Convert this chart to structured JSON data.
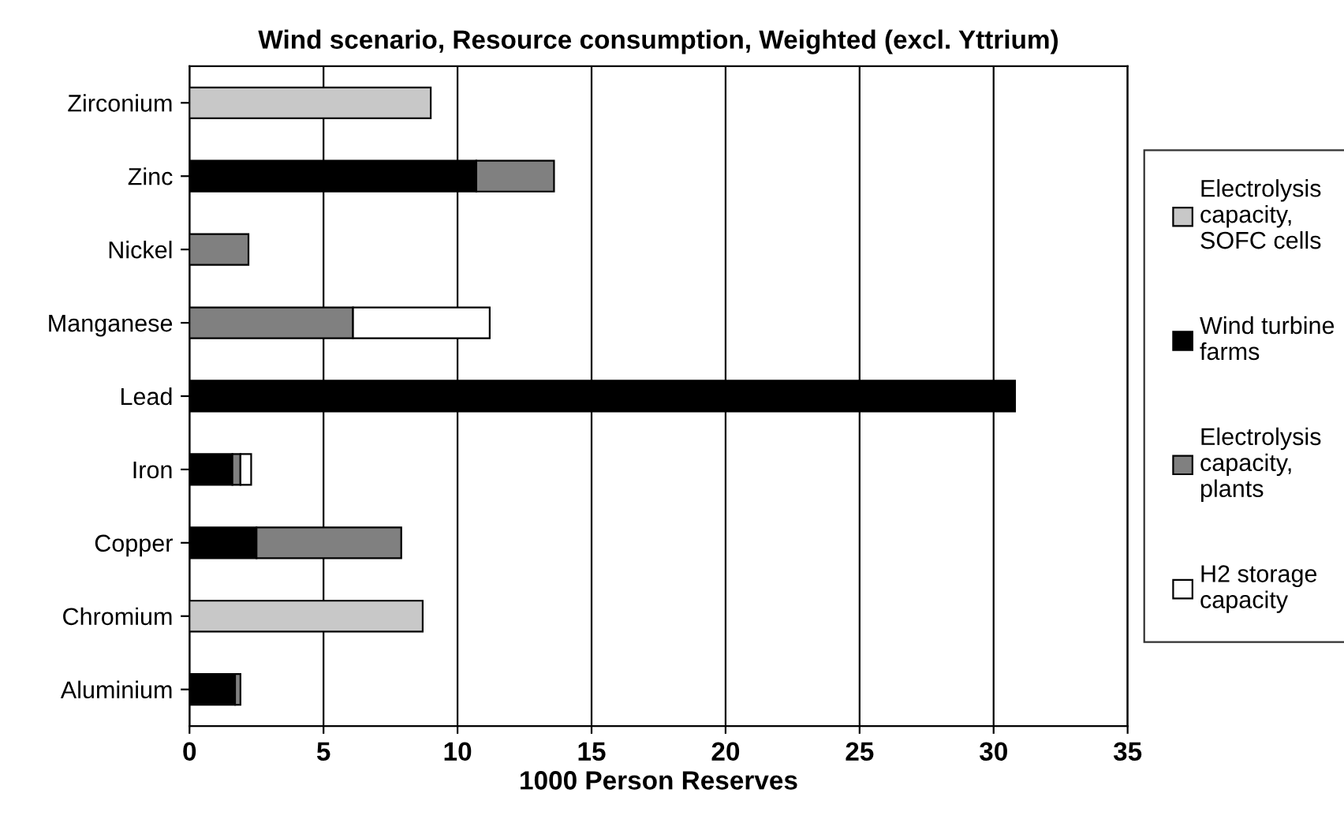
{
  "chart_data": {
    "type": "bar",
    "orientation": "horizontal",
    "stacked": true,
    "title": "Wind scenario, Resource consumption, Weighted (excl. Yttrium)",
    "xlabel": "1000 Person Reserves",
    "categories": [
      "Zirconium",
      "Zinc",
      "Nickel",
      "Manganese",
      "Lead",
      "Iron",
      "Copper",
      "Chromium",
      "Aluminium"
    ],
    "series": [
      {
        "name": "Electrolysis capacity, SOFC cells",
        "color": "#c8c8c8",
        "values": [
          9.0,
          0,
          0,
          0,
          0,
          0,
          0,
          8.7,
          0
        ]
      },
      {
        "name": "Wind turbine farms",
        "color": "#000000",
        "values": [
          0,
          10.7,
          0,
          0,
          30.8,
          1.6,
          2.5,
          0,
          1.7
        ]
      },
      {
        "name": "Electrolysis capacity, plants",
        "color": "#808080",
        "values": [
          0,
          2.9,
          2.2,
          6.1,
          0,
          0.3,
          5.4,
          0,
          0.2
        ]
      },
      {
        "name": "H2 storage capacity",
        "color": "#ffffff",
        "values": [
          0,
          0,
          0,
          5.1,
          0,
          0.4,
          0,
          0,
          0
        ]
      }
    ],
    "xlim": [
      0,
      35
    ],
    "xticks": [
      0,
      5,
      10,
      15,
      20,
      25,
      30,
      35
    ],
    "grid": "x",
    "legend": "right"
  }
}
